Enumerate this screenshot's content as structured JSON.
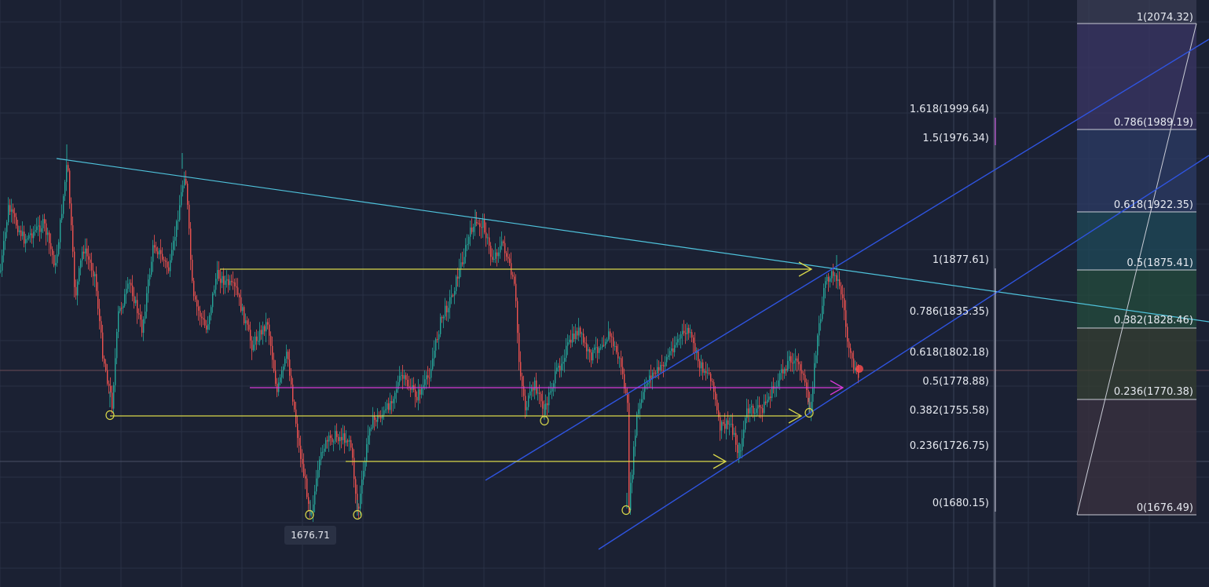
{
  "chart_data": {
    "type": "candlestick",
    "instrument": "",
    "price_marker": "1676.71",
    "fib_left": [
      {
        "ratio": "1.618",
        "price": "1999.64",
        "label": "1.618(1999.64)"
      },
      {
        "ratio": "1.5",
        "price": "1976.34",
        "label": "1.5(1976.34)"
      },
      {
        "ratio": "1",
        "price": "1877.61",
        "label": "1(1877.61)"
      },
      {
        "ratio": "0.786",
        "price": "1835.35",
        "label": "0.786(1835.35)"
      },
      {
        "ratio": "0.618",
        "price": "1802.18",
        "label": "0.618(1802.18)"
      },
      {
        "ratio": "0.5",
        "price": "1778.88",
        "label": "0.5(1778.88)"
      },
      {
        "ratio": "0.382",
        "price": "1755.58",
        "label": "0.382(1755.58)"
      },
      {
        "ratio": "0.236",
        "price": "1726.75",
        "label": "0.236(1726.75)"
      },
      {
        "ratio": "0",
        "price": "1680.15",
        "label": "0(1680.15)"
      }
    ],
    "fib_right": [
      {
        "ratio": "1",
        "price": "2074.32",
        "label": "1(2074.32)",
        "color": "#3a3e55"
      },
      {
        "ratio": "0.786",
        "price": "1989.19",
        "label": "0.786(1989.19)",
        "color": "#3b3566"
      },
      {
        "ratio": "0.618",
        "price": "1922.35",
        "label": "0.618(1922.35)",
        "color": "#2c3b66"
      },
      {
        "ratio": "0.5",
        "price": "1875.41",
        "label": "0.5(1875.41)",
        "color": "#1f4a5a"
      },
      {
        "ratio": "0.382",
        "price": "1828.46",
        "label": "0.382(1828.46)",
        "color": "#244c3e"
      },
      {
        "ratio": "0.236",
        "price": "1770.38",
        "label": "0.236(1770.38)",
        "color": "#353f33"
      },
      {
        "ratio": "0",
        "price": "1676.49",
        "label": "0(1676.49)",
        "color": "#3b3240"
      }
    ],
    "colors": {
      "background": "#1b2133",
      "up": "#26a69a",
      "down": "#ef5350",
      "resistance": "#4fc3dc",
      "channel": "#2f54e0",
      "support": "#d9d84a",
      "magenta": "#d63ad6"
    }
  }
}
